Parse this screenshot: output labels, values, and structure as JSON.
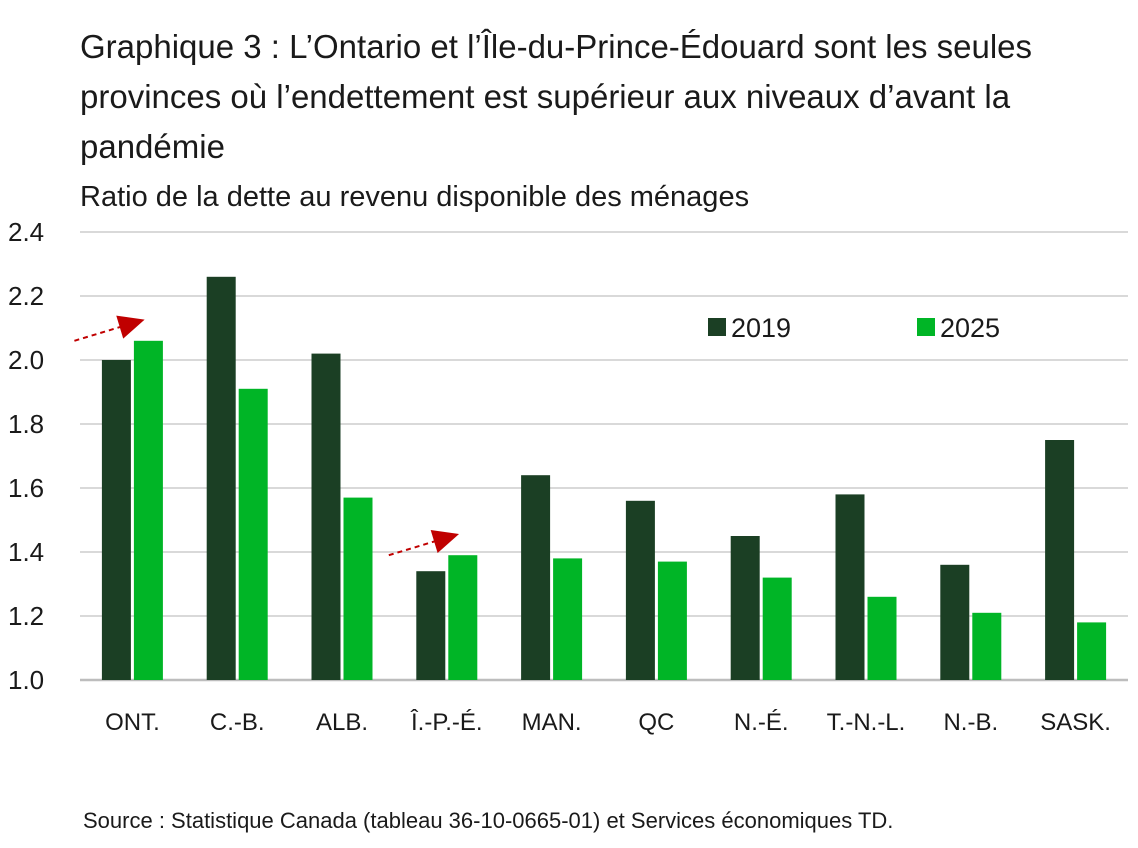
{
  "title": "Graphique 3 : L’Ontario et l’Île-du-Prince-Édouard sont les seules provinces où l’endettement est supérieur aux niveaux d’avant la pandémie",
  "source": "Source : Statistique Canada (tableau 36-10-0665-01) et Services économiques TD.",
  "chart_data": {
    "type": "bar",
    "title": "Graphique 3 : L’Ontario et l’Île-du-Prince-Édouard sont les seules provinces où l’endettement est supérieur aux niveaux d’avant la pandémie",
    "ylabel": "Ratio de la dette au revenu disponible des ménages",
    "xlabel": "",
    "ylim": [
      1.0,
      2.4
    ],
    "yticks": [
      "1.0",
      "1.2",
      "1.4",
      "1.6",
      "1.8",
      "2.0",
      "2.2",
      "2.4"
    ],
    "grid": true,
    "legend_position": "top-right",
    "categories": [
      "ONT.",
      "C.-B.",
      "ALB.",
      "Î.-P.-É.",
      "MAN.",
      "QC",
      "N.-É.",
      "T.-N.-L.",
      "N.-B.",
      "SASK."
    ],
    "series": [
      {
        "name": "2019",
        "color": "#1b3f24",
        "values": [
          2.0,
          2.26,
          2.02,
          1.34,
          1.64,
          1.56,
          1.45,
          1.58,
          1.36,
          1.75
        ]
      },
      {
        "name": "2025",
        "color": "#00b526",
        "values": [
          2.06,
          1.91,
          1.57,
          1.39,
          1.38,
          1.37,
          1.32,
          1.26,
          1.21,
          1.18
        ]
      }
    ],
    "annotations": [
      {
        "type": "arrow",
        "category": "ONT.",
        "color": "#c00000",
        "style": "dashed"
      },
      {
        "type": "arrow",
        "category": "Î.-P.-É.",
        "color": "#c00000",
        "style": "dashed"
      }
    ]
  }
}
